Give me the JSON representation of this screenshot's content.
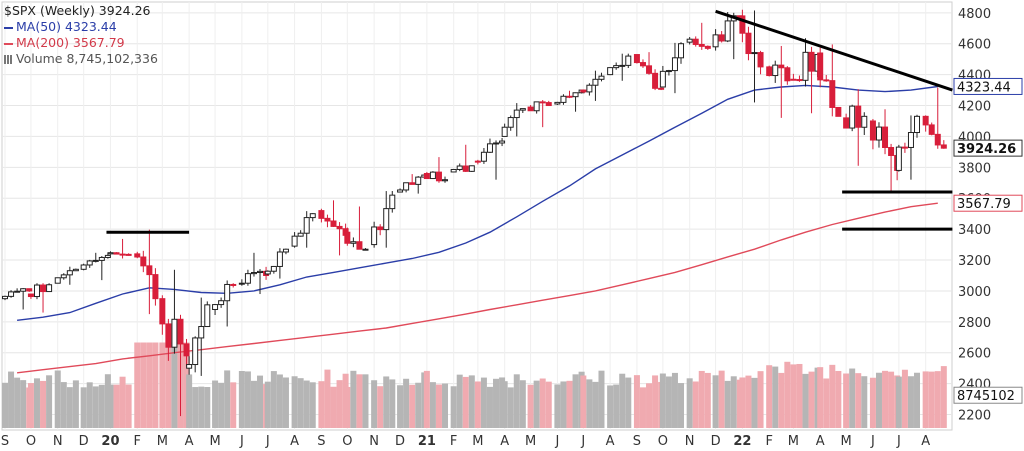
{
  "legend": {
    "main": "$SPX (Weekly) 3924.26",
    "ma50": "MA(50) 4323.44",
    "ma200": "MA(200) 3567.79",
    "volume": "Volume 8,745,102,336"
  },
  "colors": {
    "up_candle": "#222222",
    "down_candle": "#d81e3a",
    "ma50": "#2b3ea8",
    "ma200": "#e04a5a",
    "volume_up": "#b5b5b5",
    "volume_down": "#f0aab0",
    "annotation": "#000000",
    "grid": "#e6e6e6"
  },
  "chart_data": {
    "type": "candlestick",
    "title": "$SPX (Weekly)",
    "x_axis": {
      "labels": [
        "S",
        "O",
        "N",
        "D",
        "20",
        "F",
        "M",
        "A",
        "M",
        "J",
        "J",
        "A",
        "S",
        "O",
        "N",
        "D",
        "21",
        "F",
        "M",
        "A",
        "M",
        "J",
        "J",
        "A",
        "S",
        "O",
        "N",
        "D",
        "22",
        "F",
        "M",
        "A",
        "M",
        "J",
        "J",
        "A"
      ],
      "start": "2019-09",
      "end": "2022-08"
    },
    "y_axis": {
      "ticks": [
        2200,
        2400,
        2600,
        2800,
        3000,
        3200,
        3400,
        3600,
        3800,
        4000,
        4200,
        4400,
        4600,
        4800
      ],
      "range": [
        2100,
        4870
      ],
      "position": "right"
    },
    "value_labels": {
      "last": "3924.26",
      "ma50": "4323.44",
      "ma200": "3567.79",
      "volume": "8745102"
    },
    "ohlc_monthly": [
      {
        "m": "2019-09",
        "o": 2950,
        "h": 3020,
        "l": 2880,
        "c": 3000
      },
      {
        "m": "2019-10",
        "o": 2980,
        "h": 3050,
        "l": 2860,
        "c": 3040
      },
      {
        "m": "2019-11",
        "o": 3050,
        "h": 3160,
        "l": 3040,
        "c": 3140
      },
      {
        "m": "2019-12",
        "o": 3140,
        "h": 3250,
        "l": 3070,
        "c": 3230
      },
      {
        "m": "2020-01",
        "o": 3240,
        "h": 3340,
        "l": 3210,
        "c": 3230
      },
      {
        "m": "2020-02",
        "o": 3240,
        "h": 3400,
        "l": 2850,
        "c": 2950
      },
      {
        "m": "2020-03",
        "o": 2950,
        "h": 3140,
        "l": 2190,
        "c": 2580
      },
      {
        "m": "2020-04",
        "o": 2500,
        "h": 2960,
        "l": 2450,
        "c": 2910
      },
      {
        "m": "2020-05",
        "o": 2880,
        "h": 3070,
        "l": 2770,
        "c": 3040
      },
      {
        "m": "2020-06",
        "o": 3050,
        "h": 3250,
        "l": 2980,
        "c": 3100
      },
      {
        "m": "2020-07",
        "o": 3110,
        "h": 3280,
        "l": 3080,
        "c": 3270
      },
      {
        "m": "2020-08",
        "o": 3290,
        "h": 3520,
        "l": 3280,
        "c": 3500
      },
      {
        "m": "2020-09",
        "o": 3520,
        "h": 3590,
        "l": 3230,
        "c": 3360
      },
      {
        "m": "2020-10",
        "o": 3380,
        "h": 3550,
        "l": 3270,
        "c": 3270
      },
      {
        "m": "2020-11",
        "o": 3300,
        "h": 3650,
        "l": 3280,
        "c": 3620
      },
      {
        "m": "2020-12",
        "o": 3640,
        "h": 3760,
        "l": 3630,
        "c": 3750
      },
      {
        "m": "2021-01",
        "o": 3760,
        "h": 3870,
        "l": 3700,
        "c": 3720
      },
      {
        "m": "2021-02",
        "o": 3770,
        "h": 3950,
        "l": 3770,
        "c": 3810
      },
      {
        "m": "2021-03",
        "o": 3840,
        "h": 3990,
        "l": 3720,
        "c": 3970
      },
      {
        "m": "2021-04",
        "o": 4000,
        "h": 4220,
        "l": 4000,
        "c": 4180
      },
      {
        "m": "2021-05",
        "o": 4190,
        "h": 4240,
        "l": 4060,
        "c": 4200
      },
      {
        "m": "2021-06",
        "o": 4210,
        "h": 4300,
        "l": 4160,
        "c": 4300
      },
      {
        "m": "2021-07",
        "o": 4300,
        "h": 4430,
        "l": 4230,
        "c": 4390
      },
      {
        "m": "2021-08",
        "o": 4400,
        "h": 4540,
        "l": 4360,
        "c": 4520
      },
      {
        "m": "2021-09",
        "o": 4530,
        "h": 4550,
        "l": 4300,
        "c": 4310
      },
      {
        "m": "2021-10",
        "o": 4320,
        "h": 4610,
        "l": 4280,
        "c": 4600
      },
      {
        "m": "2021-11",
        "o": 4610,
        "h": 4740,
        "l": 4560,
        "c": 4570
      },
      {
        "m": "2021-12",
        "o": 4580,
        "h": 4810,
        "l": 4500,
        "c": 4770
      },
      {
        "m": "2022-01",
        "o": 4780,
        "h": 4820,
        "l": 4220,
        "c": 4450
      },
      {
        "m": "2022-02",
        "o": 4450,
        "h": 4590,
        "l": 4120,
        "c": 4360
      },
      {
        "m": "2022-03",
        "o": 4370,
        "h": 4640,
        "l": 4150,
        "c": 4530
      },
      {
        "m": "2022-04",
        "o": 4540,
        "h": 4600,
        "l": 4130,
        "c": 4130
      },
      {
        "m": "2022-05",
        "o": 4120,
        "h": 4310,
        "l": 3810,
        "c": 4130
      },
      {
        "m": "2022-06",
        "o": 4100,
        "h": 4180,
        "l": 3640,
        "c": 3780
      },
      {
        "m": "2022-07",
        "o": 3780,
        "h": 4140,
        "l": 3720,
        "c": 4130
      },
      {
        "m": "2022-08",
        "o": 4130,
        "h": 4320,
        "l": 3920,
        "c": 3924
      }
    ],
    "ma50_monthly": [
      2810,
      2830,
      2860,
      2920,
      2980,
      3020,
      3010,
      2990,
      2985,
      3000,
      3040,
      3090,
      3120,
      3150,
      3180,
      3210,
      3250,
      3310,
      3380,
      3480,
      3580,
      3680,
      3790,
      3880,
      3970,
      4060,
      4150,
      4240,
      4300,
      4320,
      4330,
      4320,
      4300,
      4290,
      4300,
      4323
    ],
    "ma200_monthly": [
      2470,
      2490,
      2510,
      2530,
      2560,
      2580,
      2600,
      2620,
      2640,
      2660,
      2680,
      2700,
      2720,
      2740,
      2760,
      2790,
      2820,
      2850,
      2880,
      2910,
      2940,
      2970,
      3000,
      3040,
      3080,
      3120,
      3170,
      3220,
      3270,
      3330,
      3380,
      3430,
      3470,
      3510,
      3545,
      3567.79
    ],
    "annotations": [
      {
        "kind": "resistance",
        "value": 3380,
        "from": "2020-01",
        "to": "2020-03"
      },
      {
        "kind": "trendline",
        "from_value": 4810,
        "to_value": 4300,
        "from": "2021-12",
        "to": "2022-08"
      },
      {
        "kind": "support",
        "value": 3640,
        "from": "2022-05",
        "to": "2022-08"
      },
      {
        "kind": "support",
        "value": 3400,
        "from": "2022-05",
        "to": "2022-08"
      }
    ],
    "legend_position": "top-left",
    "grid": true
  }
}
